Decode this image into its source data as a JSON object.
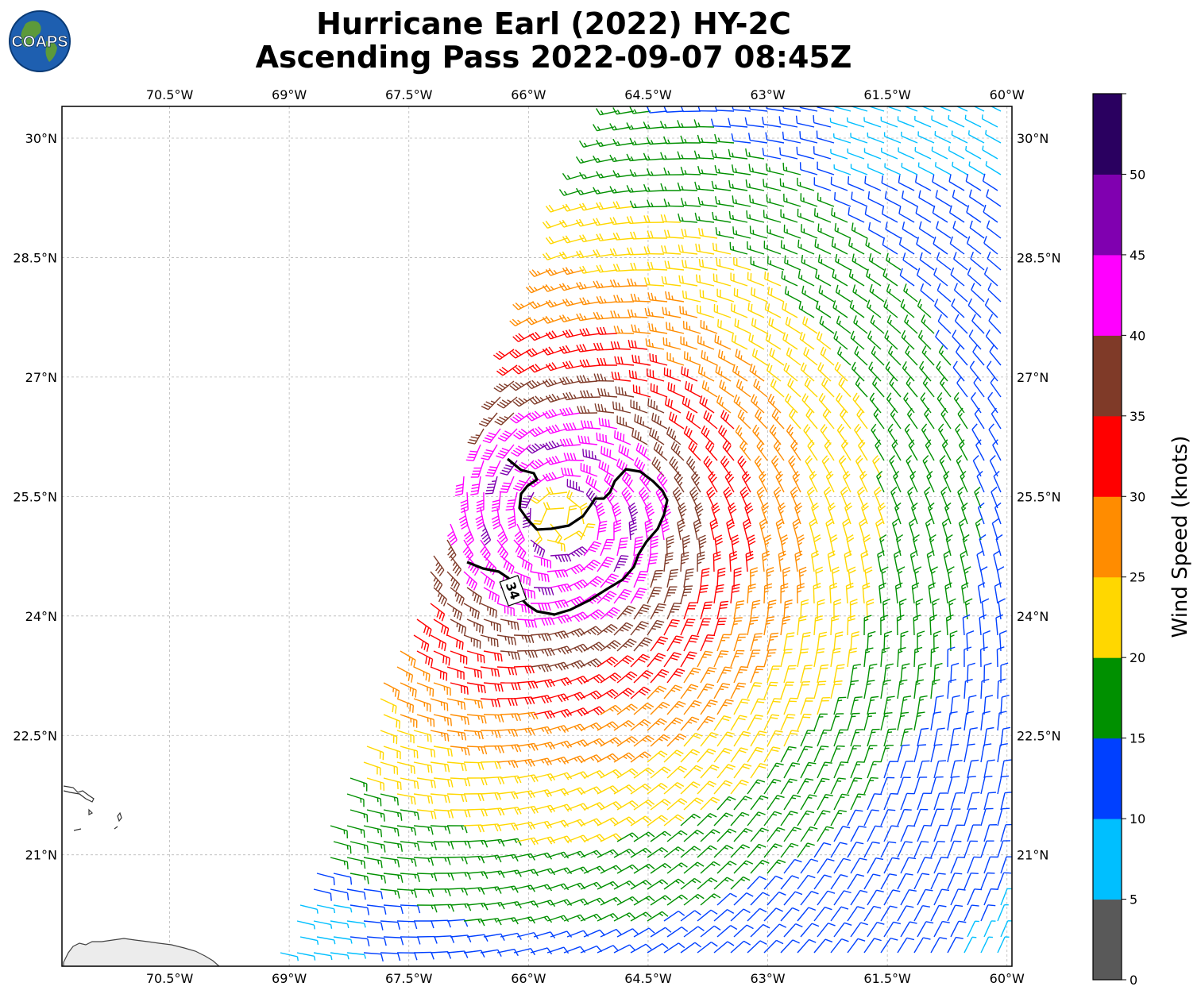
{
  "title": {
    "line1": "Hurricane Earl (2022) HY-2C",
    "line2": "Ascending Pass 2022-09-07 08:45Z"
  },
  "logo": {
    "text": "COAPS"
  },
  "map": {
    "lon_ticks": [
      "70.5°W",
      "69°W",
      "67.5°W",
      "66°W",
      "64.5°W",
      "63°W",
      "61.5°W",
      "60°W"
    ],
    "lat_ticks": [
      "30°N",
      "28.5°N",
      "27°N",
      "25.5°N",
      "24°N",
      "22.5°N",
      "21°N"
    ],
    "lon_range": [
      -71.85,
      -59.93
    ],
    "lat_range": [
      19.6,
      30.4
    ],
    "contour_label": "34",
    "gridlines": true
  },
  "colorbar": {
    "title": "Wind Speed (knots)",
    "ticks": [
      "0",
      "5",
      "10",
      "15",
      "20",
      "25",
      "30",
      "35",
      "40",
      "45",
      "50"
    ],
    "colors": [
      "#595959",
      "#00bfff",
      "#0040ff",
      "#009000",
      "#ffd700",
      "#ff8c00",
      "#ff0000",
      "#7f3a28",
      "#ff00ff",
      "#8000b0",
      "#2a0060"
    ]
  },
  "chart_data": {
    "type": "wind-barb-map",
    "storm_center_lon": -65.6,
    "storm_center_lat": 25.2,
    "contour_kt": 34
  }
}
